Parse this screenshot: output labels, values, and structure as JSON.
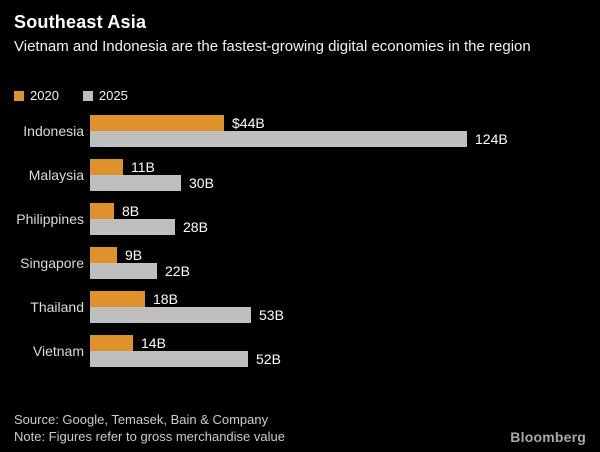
{
  "header": {
    "title": "Southeast Asia",
    "subtitle": "Vietnam and Indonesia are the fastest-growing digital economies in the region"
  },
  "legend": [
    {
      "label": "2020",
      "color": "#DF922B"
    },
    {
      "label": "2025",
      "color": "#BFBFBF"
    }
  ],
  "chart_data": {
    "type": "bar",
    "orientation": "horizontal",
    "title": "Southeast Asia",
    "subtitle": "Vietnam and Indonesia are the fastest-growing digital economies in the region",
    "categories": [
      "Indonesia",
      "Malaysia",
      "Philippines",
      "Singapore",
      "Thailand",
      "Vietnam"
    ],
    "series": [
      {
        "name": "2020",
        "color": "#DF922B",
        "values": [
          44,
          11,
          8,
          9,
          18,
          14
        ],
        "labels": [
          "$44B",
          "11B",
          "8B",
          "9B",
          "18B",
          "14B"
        ]
      },
      {
        "name": "2025",
        "color": "#BFBFBF",
        "values": [
          124,
          30,
          28,
          22,
          53,
          52
        ],
        "labels": [
          "124B",
          "30B",
          "28B",
          "22B",
          "53B",
          "52B"
        ]
      }
    ],
    "value_unit": "billions USD (gross merchandise value)",
    "xlim": [
      0,
      124
    ],
    "grid": false,
    "legend_position": "top-left"
  },
  "footer": {
    "source": "Source: Google, Temasek, Bain & Company",
    "note": "Note: Figures refer to gross merchandise value",
    "brand": "Bloomberg"
  },
  "colors": {
    "background": "#000000",
    "text_primary": "#FFFFFF",
    "text_secondary": "#DADADA",
    "footer_text": "#CBCBCB",
    "accent_2020": "#DF922B",
    "accent_2025": "#BFBFBF",
    "brand_gray": "#A8A8A8"
  }
}
